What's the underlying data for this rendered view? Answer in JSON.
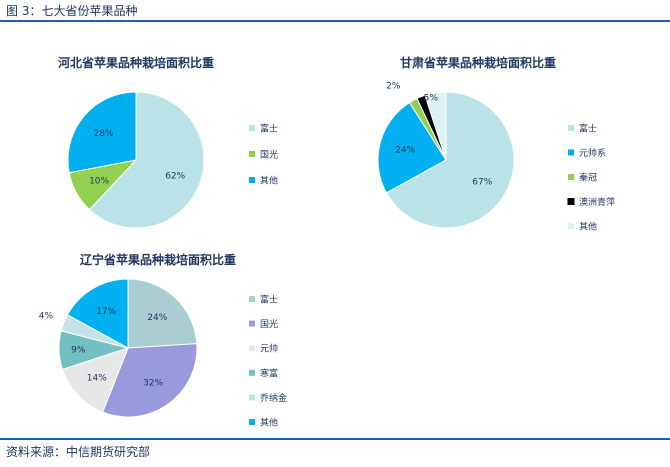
{
  "figure_title": "图 3：七大省份苹果品种",
  "source_note": "资料来源：中信期货研究部",
  "chart_data": [
    {
      "type": "pie",
      "title": "河北省苹果品种栽培面积比重",
      "legend_position": "right",
      "slices": [
        {
          "label": "富士",
          "value": 62,
          "display": "62%",
          "color": "#b9e3e6"
        },
        {
          "label": "国光",
          "value": 10,
          "display": "10%",
          "color": "#92d050"
        },
        {
          "label": "其他",
          "value": 28,
          "display": "28%",
          "color": "#00b0f0"
        }
      ]
    },
    {
      "type": "pie",
      "title": "甘肃省苹果品种栽培面积比重",
      "legend_position": "right",
      "slices": [
        {
          "label": "富士",
          "value": 67,
          "display": "67%",
          "color": "#b9e3e6"
        },
        {
          "label": "元帅系",
          "value": 24,
          "display": "24%",
          "color": "#00b0f0"
        },
        {
          "label": "秦冠",
          "value": 2,
          "display": "2%",
          "color": "#92d050"
        },
        {
          "label": "澳洲青萍",
          "value": 2,
          "display": "",
          "color": "#000000"
        },
        {
          "label": "其他",
          "value": 5,
          "display": "5%",
          "color": "#ddf0f4"
        }
      ]
    },
    {
      "type": "pie",
      "title": "辽宁省苹果品种栽培面积比重",
      "legend_position": "right",
      "slices": [
        {
          "label": "富士",
          "value": 24,
          "display": "24%",
          "color": "#a9cdd0"
        },
        {
          "label": "国光",
          "value": 32,
          "display": "32%",
          "color": "#9999dd"
        },
        {
          "label": "元帅",
          "value": 14,
          "display": "14%",
          "color": "#e7e7e7"
        },
        {
          "label": "寒富",
          "value": 9,
          "display": "9%",
          "color": "#72bfc4"
        },
        {
          "label": "乔纳金",
          "value": 4,
          "display": "4%",
          "color": "#c5e3e5"
        },
        {
          "label": "其他",
          "value": 17,
          "display": "17%",
          "color": "#00b0f0"
        }
      ]
    }
  ]
}
